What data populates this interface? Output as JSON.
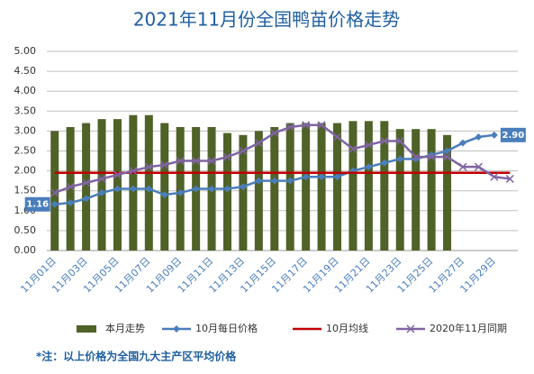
{
  "chart_data": {
    "type": "bar",
    "title": "2021年11月份全国鸭苗价格走势",
    "categories": [
      "11月01日",
      null,
      "11月03日",
      null,
      "11月05日",
      null,
      "11月07日",
      null,
      "11月09日",
      null,
      "11月11日",
      null,
      "11月13日",
      null,
      "11月15日",
      null,
      "11月17日",
      null,
      "11月19日",
      null,
      "11月21日",
      null,
      "11月23日",
      null,
      "11月25日",
      null,
      "11月27日",
      null,
      "11月29日",
      null
    ],
    "ylim": [
      0,
      5
    ],
    "yticks": [
      {
        "value": 0,
        "label": "0.00"
      },
      {
        "value": 0.5,
        "label": "0.50"
      },
      {
        "value": 1,
        "label": "1.00"
      },
      {
        "value": 1.5,
        "label": "1.50"
      },
      {
        "value": 2,
        "label": "2.00"
      },
      {
        "value": 2.5,
        "label": "2.50"
      },
      {
        "value": 3,
        "label": "3.00"
      },
      {
        "value": 3.5,
        "label": "3.50"
      },
      {
        "value": 4,
        "label": "4.00"
      },
      {
        "value": 4.5,
        "label": "4.50"
      },
      {
        "value": 5,
        "label": "5.00"
      }
    ],
    "grid": true,
    "legend": "bottom",
    "series": [
      {
        "name": "本月走势",
        "type": "bar",
        "color": "#4f6228",
        "values": [
          3.0,
          3.1,
          3.2,
          3.3,
          3.3,
          3.4,
          3.4,
          3.2,
          3.1,
          3.1,
          3.1,
          2.95,
          2.9,
          3.0,
          3.1,
          3.2,
          3.2,
          3.2,
          3.2,
          3.25,
          3.25,
          3.25,
          3.05,
          3.05,
          3.05,
          2.9,
          null,
          null,
          null,
          null
        ]
      },
      {
        "name": "10月每日价格",
        "type": "line",
        "marker": "diamond",
        "color": "#4a7ebb",
        "values": [
          1.16,
          1.2,
          1.3,
          1.45,
          1.55,
          1.55,
          1.55,
          1.4,
          1.45,
          1.55,
          1.55,
          1.55,
          1.6,
          1.75,
          1.75,
          1.75,
          1.85,
          1.85,
          1.85,
          2.0,
          2.1,
          2.2,
          2.3,
          2.3,
          2.4,
          2.5,
          2.7,
          2.85,
          2.9,
          null
        ],
        "value_labels": [
          "1.16",
          null,
          null,
          null,
          null,
          null,
          null,
          null,
          null,
          null,
          null,
          null,
          null,
          null,
          null,
          null,
          null,
          null,
          null,
          null,
          null,
          null,
          null,
          null,
          null,
          null,
          null,
          null,
          "2.90",
          null
        ]
      },
      {
        "name": "10月均线",
        "type": "line",
        "marker": "none",
        "color": "#c00000",
        "values": [
          1.95,
          1.95,
          1.95,
          1.95,
          1.95,
          1.95,
          1.95,
          1.95,
          1.95,
          1.95,
          1.95,
          1.95,
          1.95,
          1.95,
          1.95,
          1.95,
          1.95,
          1.95,
          1.95,
          1.95,
          1.95,
          1.95,
          1.95,
          1.95,
          1.95,
          1.95,
          1.95,
          1.95,
          1.95,
          1.95
        ]
      },
      {
        "name": "2020年11月同期",
        "type": "line",
        "marker": "x",
        "color": "#8064a2",
        "values": [
          1.45,
          1.6,
          1.7,
          1.8,
          1.9,
          2.0,
          2.1,
          2.15,
          2.25,
          2.25,
          2.25,
          2.35,
          2.5,
          2.7,
          2.95,
          3.1,
          3.15,
          3.15,
          2.85,
          2.55,
          2.65,
          2.75,
          2.75,
          2.35,
          2.35,
          2.35,
          2.1,
          2.1,
          1.85,
          1.8
        ]
      }
    ],
    "footnote": "*注：以上价格为全国九大主产区平均价格"
  }
}
